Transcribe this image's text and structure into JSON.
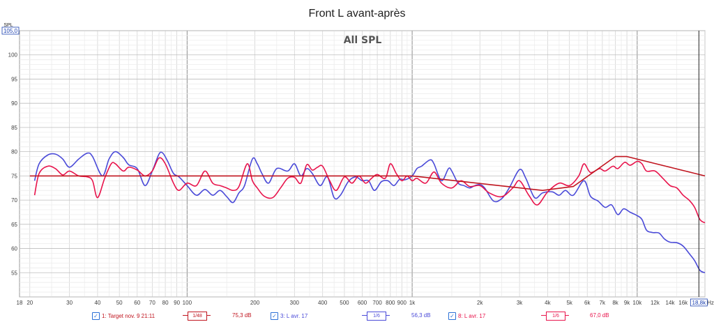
{
  "window": {
    "title": "Front L avant-après",
    "subtitle": "All SPL"
  },
  "chart_data": {
    "type": "line",
    "title": "Front L avant-après",
    "subtitle": "All SPL",
    "xlabel": "Hz",
    "ylabel": "SPL",
    "x_scale": "log",
    "xlim": [
      18,
      20000
    ],
    "ylim": [
      50,
      105
    ],
    "y_top_box": "105,0",
    "x_end_box": "18,8k",
    "x_ticks": [
      {
        "v": 18,
        "l": "18"
      },
      {
        "v": 20,
        "l": "20"
      },
      {
        "v": 30,
        "l": "30"
      },
      {
        "v": 40,
        "l": "40"
      },
      {
        "v": 50,
        "l": "50"
      },
      {
        "v": 60,
        "l": "60"
      },
      {
        "v": 70,
        "l": "70"
      },
      {
        "v": 80,
        "l": "80"
      },
      {
        "v": 90,
        "l": "90"
      },
      {
        "v": 100,
        "l": "100"
      },
      {
        "v": 200,
        "l": "200"
      },
      {
        "v": 300,
        "l": "300"
      },
      {
        "v": 400,
        "l": "400"
      },
      {
        "v": 500,
        "l": "500"
      },
      {
        "v": 600,
        "l": "600"
      },
      {
        "v": 700,
        "l": "700"
      },
      {
        "v": 800,
        "l": "800"
      },
      {
        "v": 900,
        "l": "900"
      },
      {
        "v": 1000,
        "l": "1k"
      },
      {
        "v": 2000,
        "l": "2k"
      },
      {
        "v": 3000,
        "l": "3k"
      },
      {
        "v": 4000,
        "l": "4k"
      },
      {
        "v": 5000,
        "l": "5k"
      },
      {
        "v": 6000,
        "l": "6k"
      },
      {
        "v": 7000,
        "l": "7k"
      },
      {
        "v": 8000,
        "l": "8k"
      },
      {
        "v": 9000,
        "l": "9k"
      },
      {
        "v": 10000,
        "l": "10k"
      },
      {
        "v": 12000,
        "l": "12k"
      },
      {
        "v": 14000,
        "l": "14k"
      },
      {
        "v": 16000,
        "l": "16k"
      }
    ],
    "y_ticks": [
      55,
      60,
      65,
      70,
      75,
      80,
      85,
      90,
      95,
      100
    ],
    "grid": true,
    "cursor_x": 18800,
    "series": [
      {
        "name": "1: Target nov. 9 21:11",
        "color": "#c0141e",
        "points": [
          [
            20,
            75
          ],
          [
            1000,
            75
          ],
          [
            3800,
            72
          ],
          [
            5200,
            72.8
          ],
          [
            8000,
            79
          ],
          [
            9000,
            79
          ],
          [
            20000,
            75
          ]
        ]
      },
      {
        "name": "3: L avr. 17",
        "color": "#4a4ad8",
        "points": [
          [
            21,
            74
          ],
          [
            22,
            77.5
          ],
          [
            24,
            79.3
          ],
          [
            26,
            79.5
          ],
          [
            28,
            78.5
          ],
          [
            30,
            76.8
          ],
          [
            33,
            78.5
          ],
          [
            36,
            79.7
          ],
          [
            38,
            79
          ],
          [
            42,
            75
          ],
          [
            45,
            78.5
          ],
          [
            48,
            80
          ],
          [
            52,
            78.8
          ],
          [
            55,
            77.3
          ],
          [
            60,
            76.5
          ],
          [
            65,
            73
          ],
          [
            70,
            76
          ],
          [
            75,
            79.5
          ],
          [
            78,
            79.7
          ],
          [
            82,
            78
          ],
          [
            87,
            75.5
          ],
          [
            92,
            74.8
          ],
          [
            100,
            73
          ],
          [
            110,
            71
          ],
          [
            120,
            72.2
          ],
          [
            130,
            71
          ],
          [
            140,
            72
          ],
          [
            150,
            70.7
          ],
          [
            160,
            69.5
          ],
          [
            170,
            71.5
          ],
          [
            180,
            73
          ],
          [
            195,
            78.5
          ],
          [
            205,
            77.5
          ],
          [
            215,
            75.5
          ],
          [
            230,
            73.5
          ],
          [
            250,
            76.5
          ],
          [
            280,
            76
          ],
          [
            300,
            77.5
          ],
          [
            320,
            75
          ],
          [
            340,
            76.5
          ],
          [
            360,
            75.5
          ],
          [
            390,
            73
          ],
          [
            420,
            74.8
          ],
          [
            450,
            70.5
          ],
          [
            480,
            71
          ],
          [
            520,
            73.8
          ],
          [
            560,
            74.8
          ],
          [
            600,
            74
          ],
          [
            640,
            74
          ],
          [
            680,
            72
          ],
          [
            730,
            73.8
          ],
          [
            780,
            74
          ],
          [
            830,
            73
          ],
          [
            880,
            74.3
          ],
          [
            930,
            74.2
          ],
          [
            1000,
            75
          ],
          [
            1050,
            76.5
          ],
          [
            1100,
            77
          ],
          [
            1200,
            78.3
          ],
          [
            1250,
            77.5
          ],
          [
            1350,
            74
          ],
          [
            1450,
            76.5
          ],
          [
            1500,
            76
          ],
          [
            1600,
            73.5
          ],
          [
            1700,
            73
          ],
          [
            1800,
            72.5
          ],
          [
            1900,
            73
          ],
          [
            2000,
            73.2
          ],
          [
            2100,
            72.5
          ],
          [
            2300,
            69.8
          ],
          [
            2500,
            70.3
          ],
          [
            2700,
            72.5
          ],
          [
            3000,
            76.3
          ],
          [
            3200,
            74.5
          ],
          [
            3500,
            70.5
          ],
          [
            3800,
            71.5
          ],
          [
            4200,
            71.7
          ],
          [
            4500,
            71
          ],
          [
            4800,
            72
          ],
          [
            5200,
            71
          ],
          [
            5800,
            74
          ],
          [
            6200,
            70.8
          ],
          [
            6700,
            69.8
          ],
          [
            7200,
            68.5
          ],
          [
            7700,
            69
          ],
          [
            8200,
            67
          ],
          [
            8700,
            68.2
          ],
          [
            9300,
            67.5
          ],
          [
            10000,
            66.8
          ],
          [
            10500,
            66
          ],
          [
            11000,
            63.8
          ],
          [
            11700,
            63.3
          ],
          [
            12500,
            63.2
          ],
          [
            13200,
            62
          ],
          [
            14000,
            61.3
          ],
          [
            15000,
            61.2
          ],
          [
            16000,
            60.5
          ],
          [
            17000,
            59
          ],
          [
            18000,
            57.5
          ],
          [
            19000,
            55.5
          ],
          [
            20000,
            55
          ]
        ]
      },
      {
        "name": "8: L avr. 17",
        "color": "#e8134b",
        "points": [
          [
            21,
            71
          ],
          [
            22,
            75.5
          ],
          [
            24,
            77
          ],
          [
            26,
            76.5
          ],
          [
            28,
            75.2
          ],
          [
            30,
            76
          ],
          [
            33,
            75
          ],
          [
            36,
            74.8
          ],
          [
            38,
            74
          ],
          [
            40,
            70.5
          ],
          [
            43,
            74.5
          ],
          [
            46,
            77.5
          ],
          [
            48,
            77.5
          ],
          [
            52,
            76
          ],
          [
            55,
            76.8
          ],
          [
            60,
            76.2
          ],
          [
            65,
            75
          ],
          [
            70,
            76
          ],
          [
            75,
            78.7
          ],
          [
            80,
            77.5
          ],
          [
            87,
            73.5
          ],
          [
            92,
            72
          ],
          [
            100,
            73.5
          ],
          [
            110,
            73
          ],
          [
            120,
            76
          ],
          [
            130,
            73.5
          ],
          [
            140,
            73
          ],
          [
            150,
            72.5
          ],
          [
            160,
            72
          ],
          [
            170,
            72.8
          ],
          [
            185,
            77.5
          ],
          [
            195,
            74
          ],
          [
            205,
            72.5
          ],
          [
            220,
            70.8
          ],
          [
            240,
            70.5
          ],
          [
            260,
            72.5
          ],
          [
            280,
            74.5
          ],
          [
            300,
            74.7
          ],
          [
            320,
            73.5
          ],
          [
            340,
            77.3
          ],
          [
            360,
            76.2
          ],
          [
            380,
            76.8
          ],
          [
            400,
            77
          ],
          [
            430,
            74
          ],
          [
            460,
            72
          ],
          [
            500,
            74.8
          ],
          [
            540,
            73.5
          ],
          [
            580,
            75
          ],
          [
            620,
            73.5
          ],
          [
            660,
            74.5
          ],
          [
            700,
            75.3
          ],
          [
            760,
            74.5
          ],
          [
            800,
            77.5
          ],
          [
            850,
            75.5
          ],
          [
            900,
            74
          ],
          [
            950,
            75
          ],
          [
            1000,
            74
          ],
          [
            1050,
            74.5
          ],
          [
            1150,
            73.5
          ],
          [
            1250,
            75.8
          ],
          [
            1350,
            73.5
          ],
          [
            1500,
            72.5
          ],
          [
            1650,
            74
          ],
          [
            1800,
            72.8
          ],
          [
            2000,
            73
          ],
          [
            2200,
            71.5
          ],
          [
            2500,
            70.7
          ],
          [
            2800,
            72.5
          ],
          [
            3000,
            74
          ],
          [
            3300,
            71
          ],
          [
            3600,
            69
          ],
          [
            4000,
            71.7
          ],
          [
            4500,
            73.5
          ],
          [
            5000,
            73
          ],
          [
            5500,
            75
          ],
          [
            5800,
            77.5
          ],
          [
            6200,
            75.7
          ],
          [
            6800,
            76.5
          ],
          [
            7200,
            76
          ],
          [
            7800,
            77
          ],
          [
            8200,
            76.5
          ],
          [
            8800,
            77.8
          ],
          [
            9300,
            77.2
          ],
          [
            10000,
            78
          ],
          [
            10500,
            77.5
          ],
          [
            11000,
            76
          ],
          [
            12000,
            76
          ],
          [
            13000,
            74.5
          ],
          [
            14000,
            73
          ],
          [
            15000,
            72.5
          ],
          [
            16000,
            71
          ],
          [
            17000,
            70
          ],
          [
            18000,
            68.5
          ],
          [
            19000,
            66
          ],
          [
            20000,
            65.3
          ]
        ]
      }
    ],
    "legend": [
      {
        "label": "1: Target nov. 9 21:11",
        "smoothing": "1/48",
        "value": "75,3 dB",
        "color": "#c0141e"
      },
      {
        "label": "3: L avr. 17",
        "smoothing": "1/6",
        "value": "56,3 dB",
        "color": "#4a4ad8"
      },
      {
        "label": "8: L avr. 17",
        "smoothing": "1/6",
        "value": "67,0 dB",
        "color": "#e8134b"
      }
    ]
  }
}
